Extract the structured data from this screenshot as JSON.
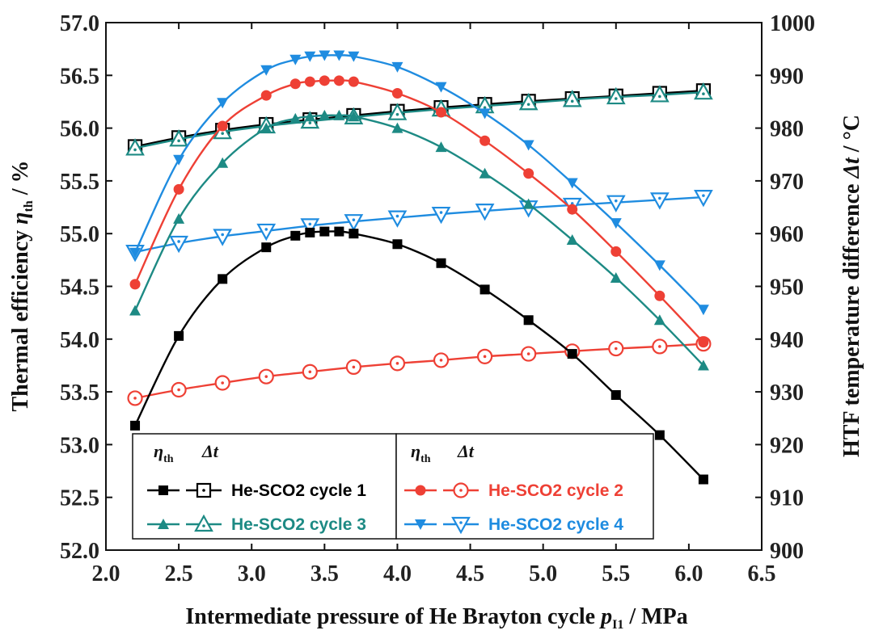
{
  "chart_data": {
    "type": "line",
    "xlabel": "Intermediate pressure of He Brayton cycle",
    "xlabel_symbol": "p",
    "xlabel_subscript": "I1",
    "xlabel_unit": " / MPa",
    "ylabel_left": "Thermal efficiency",
    "ylabel_left_symbol": "η",
    "ylabel_left_subscript": "th",
    "ylabel_left_unit": " / %",
    "ylabel_right": "HTF temperature difference",
    "ylabel_right_symbol": "Δt",
    "ylabel_right_unit": " / °C",
    "xlim": [
      2.0,
      6.5
    ],
    "ylim_left": [
      52.0,
      57.0
    ],
    "ylim_right": [
      900,
      1000
    ],
    "xticks": [
      "2.0",
      "2.5",
      "3.0",
      "3.5",
      "4.0",
      "4.5",
      "5.0",
      "5.5",
      "6.0",
      "6.5"
    ],
    "yticks_left": [
      "52.0",
      "52.5",
      "53.0",
      "53.5",
      "54.0",
      "54.5",
      "55.0",
      "55.5",
      "56.0",
      "56.5",
      "57.0"
    ],
    "yticks_right": [
      "900",
      "910",
      "920",
      "930",
      "940",
      "950",
      "960",
      "970",
      "980",
      "990",
      "1000"
    ],
    "legend_header_eta": "η",
    "legend_header_eta_sub": "th",
    "legend_header_dt": "Δt",
    "series": [
      {
        "name": "He-SCO2 cycle 1",
        "color": "#000000",
        "eta": {
          "x": [
            2.2,
            2.5,
            2.8,
            3.1,
            3.3,
            3.4,
            3.5,
            3.6,
            3.7,
            4.0,
            4.3,
            4.6,
            4.9,
            5.2,
            5.5,
            5.8,
            6.1
          ],
          "y": [
            53.18,
            54.03,
            54.57,
            54.87,
            54.98,
            55.01,
            55.02,
            55.02,
            55.0,
            54.9,
            54.72,
            54.47,
            54.18,
            53.86,
            53.47,
            53.09,
            52.67
          ]
        },
        "dt": {
          "x": [
            2.2,
            2.5,
            2.8,
            3.1,
            3.4,
            3.7,
            4.0,
            4.3,
            4.6,
            4.9,
            5.2,
            5.5,
            5.8,
            6.1
          ],
          "y": [
            976.5,
            978.2,
            979.6,
            980.7,
            981.6,
            982.4,
            983.2,
            983.9,
            984.5,
            985.1,
            985.6,
            986.1,
            986.6,
            987.1
          ]
        }
      },
      {
        "name": "He-SCO2 cycle 2",
        "color": "#ee4035",
        "eta": {
          "x": [
            2.2,
            2.5,
            2.8,
            3.1,
            3.3,
            3.4,
            3.5,
            3.6,
            3.7,
            4.0,
            4.3,
            4.6,
            4.9,
            5.2,
            5.5,
            5.8,
            6.1
          ],
          "y": [
            54.52,
            55.42,
            56.02,
            56.31,
            56.42,
            56.44,
            56.45,
            56.45,
            56.44,
            56.33,
            56.15,
            55.88,
            55.57,
            55.23,
            54.83,
            54.41,
            53.97
          ]
        },
        "dt": {
          "x": [
            2.2,
            2.5,
            2.8,
            3.1,
            3.4,
            3.7,
            4.0,
            4.3,
            4.6,
            4.9,
            5.2,
            5.5,
            5.8,
            6.1
          ],
          "y": [
            928.8,
            930.4,
            931.7,
            932.9,
            933.8,
            934.7,
            935.4,
            936.0,
            936.7,
            937.2,
            937.7,
            938.2,
            938.6,
            939.1
          ]
        }
      },
      {
        "name": "He-SCO2 cycle 3",
        "color": "#1d8a84",
        "eta": {
          "x": [
            2.2,
            2.5,
            2.8,
            3.1,
            3.3,
            3.4,
            3.5,
            3.6,
            3.7,
            4.0,
            4.3,
            4.6,
            4.9,
            5.2,
            5.5,
            5.8,
            6.1
          ],
          "y": [
            54.27,
            55.14,
            55.67,
            56.0,
            56.09,
            56.11,
            56.12,
            56.12,
            56.11,
            56.0,
            55.82,
            55.57,
            55.28,
            54.94,
            54.58,
            54.18,
            53.75
          ]
        },
        "dt": {
          "x": [
            2.2,
            2.5,
            2.8,
            3.1,
            3.4,
            3.7,
            4.0,
            4.3,
            4.6,
            4.9,
            5.2,
            5.5,
            5.8,
            6.1
          ],
          "y": [
            976.2,
            977.9,
            979.3,
            980.4,
            981.3,
            982.1,
            982.9,
            983.6,
            984.2,
            984.8,
            985.4,
            985.9,
            986.3,
            986.8
          ]
        }
      },
      {
        "name": "He-SCO2 cycle 4",
        "color": "#1f8ce0",
        "eta": {
          "x": [
            2.2,
            2.5,
            2.8,
            3.1,
            3.3,
            3.4,
            3.5,
            3.6,
            3.7,
            4.0,
            4.3,
            4.6,
            4.9,
            5.2,
            5.5,
            5.8,
            6.1
          ],
          "y": [
            54.82,
            55.7,
            56.24,
            56.55,
            56.65,
            56.68,
            56.69,
            56.69,
            56.68,
            56.58,
            56.39,
            56.14,
            55.84,
            55.48,
            55.1,
            54.7,
            54.28
          ]
        },
        "dt": {
          "x": [
            2.2,
            2.5,
            2.8,
            3.1,
            3.4,
            3.7,
            4.0,
            4.3,
            4.6,
            4.9,
            5.2,
            5.5,
            5.8,
            6.1
          ],
          "y": [
            956.5,
            958.2,
            959.5,
            960.5,
            961.5,
            962.3,
            963.0,
            963.7,
            964.3,
            964.9,
            965.4,
            965.9,
            966.4,
            966.9
          ]
        }
      }
    ]
  }
}
